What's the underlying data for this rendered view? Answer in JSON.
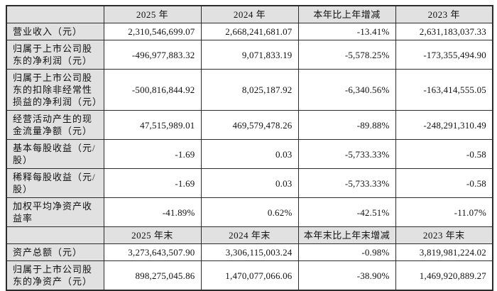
{
  "colors": {
    "header_bg": "#e1e1e1",
    "cell_bg": "#ffffff",
    "border": "#2b2b2b",
    "text": "#111111"
  },
  "table": {
    "sections": [
      {
        "headers": [
          "",
          "2025 年",
          "2024 年",
          "本年比上年增减",
          "2023 年"
        ],
        "rows": [
          {
            "label": "营业收入（元）",
            "values": [
              "2,310,546,699.07",
              "2,668,241,681.07",
              "-13.41%",
              "2,631,183,037.33"
            ]
          },
          {
            "label": "归属于上市公司股东的净利润（元）",
            "values": [
              "-496,977,883.32",
              "9,071,833.19",
              "-5,578.25%",
              "-173,355,494.90"
            ]
          },
          {
            "label": "归属于上市公司股东的扣除非经常性损益的净利润（元）",
            "values": [
              "-500,816,844.92",
              "8,025,187.92",
              "-6,340.56%",
              "-163,414,555.05"
            ]
          },
          {
            "label": "经营活动产生的现金流量净额（元）",
            "values": [
              "47,515,989.01",
              "469,579,478.26",
              "-89.88%",
              "-248,291,310.49"
            ]
          },
          {
            "label": "基本每股收益（元/股）",
            "values": [
              "-1.69",
              "0.03",
              "-5,733.33%",
              "-0.58"
            ]
          },
          {
            "label": "稀释每股收益（元/股）",
            "values": [
              "-1.69",
              "0.03",
              "-5,733.33%",
              "-0.58"
            ]
          },
          {
            "label": "加权平均净资产收益率",
            "values": [
              "-41.89%",
              "0.62%",
              "-42.51%",
              "-11.07%"
            ]
          }
        ]
      },
      {
        "headers": [
          "",
          "2025 年末",
          "2024 年末",
          "本年末比上年末增减",
          "2023 年末"
        ],
        "rows": [
          {
            "label": "资产总额（元）",
            "values": [
              "3,273,643,507.90",
              "3,306,115,003.24",
              "-0.98%",
              "3,819,981,224.02"
            ]
          },
          {
            "label": "归属于上市公司股东的净资产（元）",
            "values": [
              "898,275,045.86",
              "1,470,077,066.06",
              "-38.90%",
              "1,469,920,889.27"
            ]
          }
        ]
      }
    ]
  }
}
